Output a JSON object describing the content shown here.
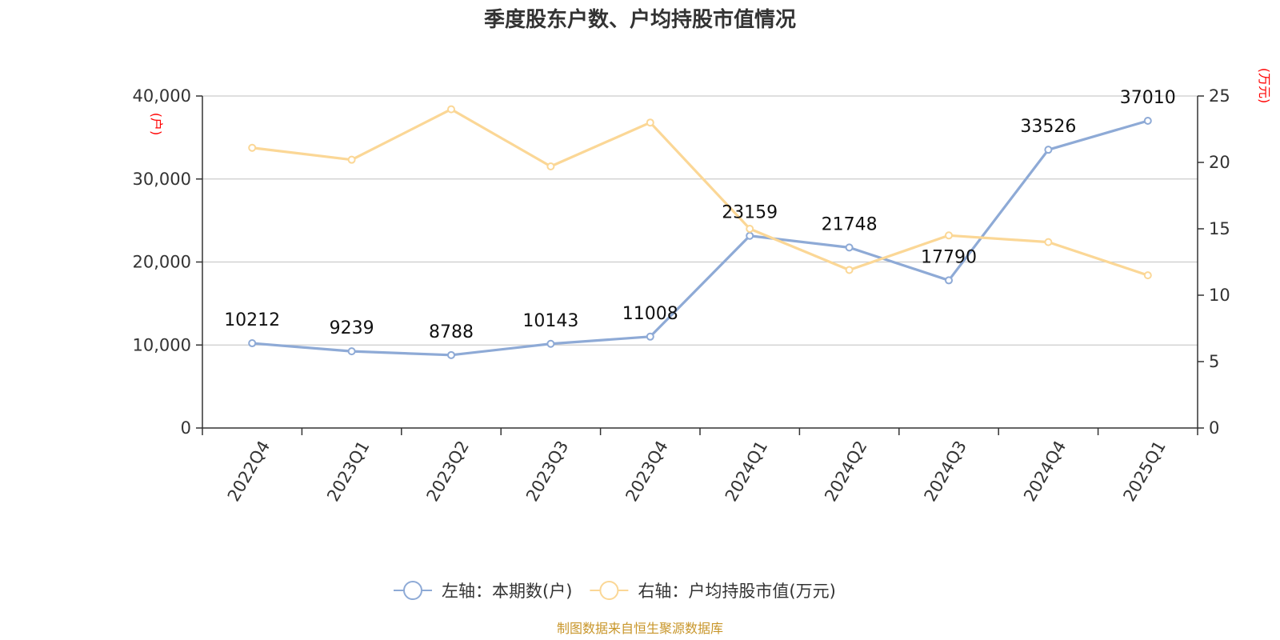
{
  "chart_data": {
    "type": "line",
    "title": "季度股东户数、户均持股市值情况",
    "categories": [
      "2022Q4",
      "2023Q1",
      "2023Q2",
      "2023Q3",
      "2023Q4",
      "2024Q1",
      "2024Q2",
      "2024Q3",
      "2024Q4",
      "2025Q1"
    ],
    "left_axis": {
      "unit": "(户)",
      "ylim": [
        0,
        40000
      ],
      "ticks": [
        "0",
        "10,000",
        "20,000",
        "30,000",
        "40,000"
      ]
    },
    "right_axis": {
      "unit": "(万元)",
      "ylim": [
        0,
        25
      ],
      "ticks": [
        "0",
        "5",
        "10",
        "15",
        "20",
        "25"
      ]
    },
    "grid": true,
    "legend_position": "bottom-center",
    "series": [
      {
        "name": "左轴：本期数(户)",
        "axis": "left",
        "color": "#8eaad6",
        "values": [
          10212,
          9239,
          8788,
          10143,
          11008,
          23159,
          21748,
          17790,
          33526,
          37010
        ],
        "labels": [
          "10212",
          "9239",
          "8788",
          "10143",
          "11008",
          "23159",
          "21748",
          "17790",
          "33526",
          "37010"
        ]
      },
      {
        "name": "右轴：户均持股市值(万元)",
        "axis": "right",
        "color": "#fbd796",
        "values": [
          21.1,
          20.2,
          24.0,
          19.7,
          23.0,
          15.0,
          11.9,
          14.5,
          14.0,
          11.5
        ]
      }
    ],
    "source": "制图数据来自恒生聚源数据库"
  }
}
